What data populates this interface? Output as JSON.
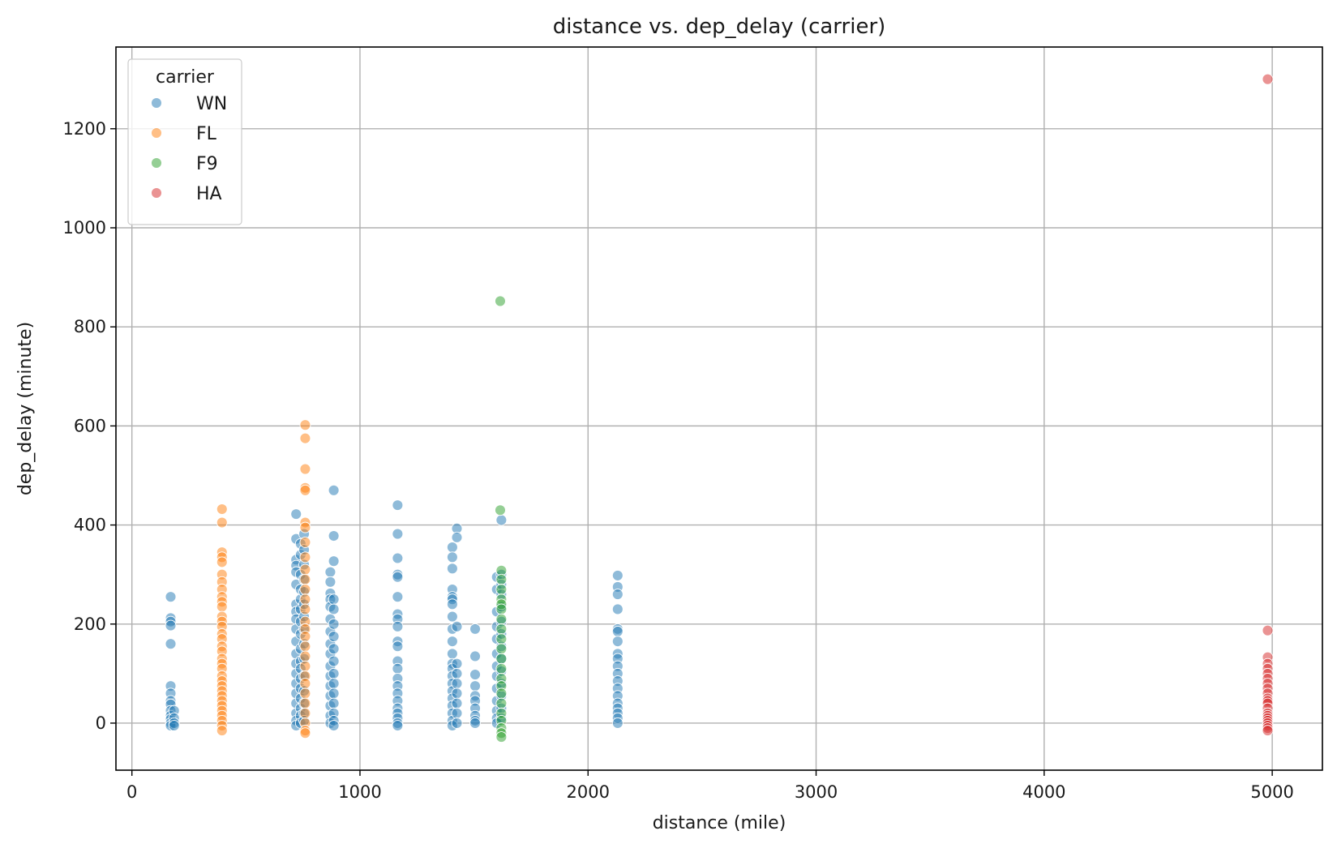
{
  "chart_data": {
    "type": "scatter",
    "title": "distance vs. dep_delay (carrier)",
    "xlabel": "distance (mile)",
    "ylabel": "dep_delay (minute)",
    "xlim": [
      -70,
      5220
    ],
    "ylim": [
      -95,
      1365
    ],
    "x_ticks": [
      0,
      1000,
      2000,
      3000,
      4000,
      5000
    ],
    "y_ticks": [
      0,
      200,
      400,
      600,
      800,
      1000,
      1200
    ],
    "grid": true,
    "legend": {
      "title": "carrier",
      "placement": "top-left"
    },
    "series": [
      {
        "name": "WN",
        "color": "#1f77b4",
        "points": [
          [
            170,
            255
          ],
          [
            170,
            212
          ],
          [
            170,
            205
          ],
          [
            170,
            197
          ],
          [
            170,
            160
          ],
          [
            170,
            75
          ],
          [
            170,
            60
          ],
          [
            170,
            45
          ],
          [
            170,
            38
          ],
          [
            170,
            25
          ],
          [
            170,
            15
          ],
          [
            170,
            8
          ],
          [
            170,
            0
          ],
          [
            170,
            -5
          ],
          [
            185,
            25
          ],
          [
            185,
            10
          ],
          [
            185,
            0
          ],
          [
            185,
            -5
          ],
          [
            720,
            422
          ],
          [
            720,
            372
          ],
          [
            720,
            330
          ],
          [
            720,
            318
          ],
          [
            720,
            305
          ],
          [
            720,
            280
          ],
          [
            720,
            240
          ],
          [
            720,
            225
          ],
          [
            720,
            210
          ],
          [
            720,
            190
          ],
          [
            720,
            165
          ],
          [
            720,
            140
          ],
          [
            720,
            120
          ],
          [
            720,
            100
          ],
          [
            720,
            80
          ],
          [
            720,
            60
          ],
          [
            720,
            40
          ],
          [
            720,
            20
          ],
          [
            720,
            5
          ],
          [
            720,
            -5
          ],
          [
            740,
            362
          ],
          [
            740,
            340
          ],
          [
            740,
            300
          ],
          [
            740,
            270
          ],
          [
            740,
            250
          ],
          [
            740,
            230
          ],
          [
            740,
            205
          ],
          [
            740,
            180
          ],
          [
            740,
            150
          ],
          [
            740,
            125
          ],
          [
            740,
            110
          ],
          [
            740,
            90
          ],
          [
            740,
            70
          ],
          [
            740,
            50
          ],
          [
            740,
            30
          ],
          [
            740,
            15
          ],
          [
            740,
            0
          ],
          [
            755,
            382
          ],
          [
            755,
            350
          ],
          [
            755,
            320
          ],
          [
            755,
            290
          ],
          [
            755,
            265
          ],
          [
            755,
            240
          ],
          [
            755,
            215
          ],
          [
            755,
            190
          ],
          [
            755,
            160
          ],
          [
            755,
            130
          ],
          [
            755,
            95
          ],
          [
            755,
            65
          ],
          [
            755,
            40
          ],
          [
            755,
            20
          ],
          [
            755,
            5
          ],
          [
            870,
            305
          ],
          [
            870,
            285
          ],
          [
            870,
            262
          ],
          [
            870,
            250
          ],
          [
            870,
            235
          ],
          [
            870,
            210
          ],
          [
            870,
            185
          ],
          [
            870,
            160
          ],
          [
            870,
            140
          ],
          [
            870,
            115
          ],
          [
            870,
            95
          ],
          [
            870,
            75
          ],
          [
            870,
            55
          ],
          [
            870,
            35
          ],
          [
            870,
            15
          ],
          [
            870,
            0
          ],
          [
            885,
            470
          ],
          [
            885,
            378
          ],
          [
            885,
            327
          ],
          [
            885,
            250
          ],
          [
            885,
            230
          ],
          [
            885,
            200
          ],
          [
            885,
            175
          ],
          [
            885,
            150
          ],
          [
            885,
            125
          ],
          [
            885,
            100
          ],
          [
            885,
            80
          ],
          [
            885,
            60
          ],
          [
            885,
            40
          ],
          [
            885,
            20
          ],
          [
            885,
            5
          ],
          [
            885,
            -5
          ],
          [
            1165,
            440
          ],
          [
            1165,
            382
          ],
          [
            1165,
            333
          ],
          [
            1165,
            300
          ],
          [
            1165,
            295
          ],
          [
            1165,
            255
          ],
          [
            1165,
            220
          ],
          [
            1165,
            210
          ],
          [
            1165,
            195
          ],
          [
            1165,
            165
          ],
          [
            1165,
            155
          ],
          [
            1165,
            125
          ],
          [
            1165,
            110
          ],
          [
            1165,
            90
          ],
          [
            1165,
            75
          ],
          [
            1165,
            60
          ],
          [
            1165,
            45
          ],
          [
            1165,
            30
          ],
          [
            1165,
            20
          ],
          [
            1165,
            10
          ],
          [
            1165,
            0
          ],
          [
            1165,
            -5
          ],
          [
            1405,
            355
          ],
          [
            1405,
            335
          ],
          [
            1405,
            312
          ],
          [
            1405,
            270
          ],
          [
            1405,
            255
          ],
          [
            1405,
            250
          ],
          [
            1405,
            240
          ],
          [
            1405,
            215
          ],
          [
            1405,
            190
          ],
          [
            1405,
            165
          ],
          [
            1405,
            140
          ],
          [
            1405,
            120
          ],
          [
            1405,
            110
          ],
          [
            1405,
            95
          ],
          [
            1405,
            80
          ],
          [
            1405,
            65
          ],
          [
            1405,
            50
          ],
          [
            1405,
            35
          ],
          [
            1405,
            20
          ],
          [
            1405,
            5
          ],
          [
            1405,
            -5
          ],
          [
            1425,
            393
          ],
          [
            1425,
            375
          ],
          [
            1425,
            195
          ],
          [
            1425,
            120
          ],
          [
            1425,
            100
          ],
          [
            1425,
            80
          ],
          [
            1425,
            60
          ],
          [
            1425,
            40
          ],
          [
            1425,
            20
          ],
          [
            1425,
            0
          ],
          [
            1505,
            190
          ],
          [
            1505,
            135
          ],
          [
            1505,
            98
          ],
          [
            1505,
            75
          ],
          [
            1505,
            55
          ],
          [
            1505,
            45
          ],
          [
            1505,
            30
          ],
          [
            1505,
            15
          ],
          [
            1505,
            5
          ],
          [
            1505,
            0
          ],
          [
            1600,
            295
          ],
          [
            1600,
            270
          ],
          [
            1600,
            225
          ],
          [
            1600,
            195
          ],
          [
            1600,
            170
          ],
          [
            1600,
            140
          ],
          [
            1600,
            115
          ],
          [
            1600,
            95
          ],
          [
            1600,
            70
          ],
          [
            1600,
            45
          ],
          [
            1600,
            25
          ],
          [
            1600,
            10
          ],
          [
            1600,
            0
          ],
          [
            1620,
            410
          ],
          [
            1620,
            300
          ],
          [
            1620,
            280
          ],
          [
            1620,
            260
          ],
          [
            1620,
            235
          ],
          [
            1620,
            205
          ],
          [
            1620,
            180
          ],
          [
            1620,
            155
          ],
          [
            1620,
            130
          ],
          [
            1620,
            105
          ],
          [
            1620,
            80
          ],
          [
            1620,
            55
          ],
          [
            1620,
            30
          ],
          [
            1620,
            10
          ],
          [
            2130,
            298
          ],
          [
            2130,
            275
          ],
          [
            2130,
            260
          ],
          [
            2130,
            230
          ],
          [
            2130,
            190
          ],
          [
            2130,
            185
          ],
          [
            2130,
            165
          ],
          [
            2130,
            140
          ],
          [
            2130,
            130
          ],
          [
            2130,
            115
          ],
          [
            2130,
            100
          ],
          [
            2130,
            85
          ],
          [
            2130,
            70
          ],
          [
            2130,
            55
          ],
          [
            2130,
            40
          ],
          [
            2130,
            30
          ],
          [
            2130,
            20
          ],
          [
            2130,
            10
          ],
          [
            2130,
            0
          ]
        ]
      },
      {
        "name": "FL",
        "color": "#ff7f0e",
        "points": [
          [
            395,
            432
          ],
          [
            395,
            405
          ],
          [
            395,
            345
          ],
          [
            395,
            335
          ],
          [
            395,
            325
          ],
          [
            395,
            300
          ],
          [
            395,
            285
          ],
          [
            395,
            270
          ],
          [
            395,
            255
          ],
          [
            395,
            245
          ],
          [
            395,
            235
          ],
          [
            395,
            215
          ],
          [
            395,
            205
          ],
          [
            395,
            195
          ],
          [
            395,
            180
          ],
          [
            395,
            170
          ],
          [
            395,
            155
          ],
          [
            395,
            145
          ],
          [
            395,
            130
          ],
          [
            395,
            120
          ],
          [
            395,
            110
          ],
          [
            395,
            95
          ],
          [
            395,
            85
          ],
          [
            395,
            75
          ],
          [
            395,
            65
          ],
          [
            395,
            55
          ],
          [
            395,
            45
          ],
          [
            395,
            35
          ],
          [
            395,
            25
          ],
          [
            395,
            15
          ],
          [
            395,
            5
          ],
          [
            395,
            -5
          ],
          [
            395,
            -15
          ],
          [
            760,
            602
          ],
          [
            760,
            575
          ],
          [
            760,
            513
          ],
          [
            760,
            475
          ],
          [
            760,
            470
          ],
          [
            760,
            405
          ],
          [
            760,
            395
          ],
          [
            760,
            365
          ],
          [
            760,
            335
          ],
          [
            760,
            310
          ],
          [
            760,
            290
          ],
          [
            760,
            270
          ],
          [
            760,
            250
          ],
          [
            760,
            230
          ],
          [
            760,
            205
          ],
          [
            760,
            190
          ],
          [
            760,
            175
          ],
          [
            760,
            155
          ],
          [
            760,
            135
          ],
          [
            760,
            115
          ],
          [
            760,
            95
          ],
          [
            760,
            80
          ],
          [
            760,
            60
          ],
          [
            760,
            40
          ],
          [
            760,
            20
          ],
          [
            760,
            0
          ],
          [
            760,
            -15
          ],
          [
            760,
            -20
          ]
        ]
      },
      {
        "name": "F9",
        "color": "#2ca02c",
        "points": [
          [
            1615,
            852
          ],
          [
            1615,
            430
          ],
          [
            1620,
            308
          ],
          [
            1620,
            290
          ],
          [
            1620,
            270
          ],
          [
            1620,
            250
          ],
          [
            1620,
            240
          ],
          [
            1620,
            230
          ],
          [
            1620,
            210
          ],
          [
            1620,
            190
          ],
          [
            1620,
            170
          ],
          [
            1620,
            150
          ],
          [
            1620,
            130
          ],
          [
            1620,
            110
          ],
          [
            1620,
            90
          ],
          [
            1620,
            75
          ],
          [
            1620,
            60
          ],
          [
            1620,
            40
          ],
          [
            1620,
            20
          ],
          [
            1620,
            5
          ],
          [
            1620,
            -10
          ],
          [
            1620,
            -20
          ],
          [
            1620,
            -28
          ]
        ]
      },
      {
        "name": "HA",
        "color": "#d62728",
        "points": [
          [
            4980,
            1300
          ],
          [
            4980,
            187
          ],
          [
            4980,
            133
          ],
          [
            4980,
            120
          ],
          [
            4980,
            110
          ],
          [
            4980,
            100
          ],
          [
            4980,
            90
          ],
          [
            4980,
            80
          ],
          [
            4980,
            70
          ],
          [
            4980,
            60
          ],
          [
            4980,
            50
          ],
          [
            4980,
            45
          ],
          [
            4980,
            40
          ],
          [
            4980,
            30
          ],
          [
            4980,
            20
          ],
          [
            4980,
            15
          ],
          [
            4980,
            10
          ],
          [
            4980,
            5
          ],
          [
            4980,
            0
          ],
          [
            4980,
            -5
          ],
          [
            4980,
            -10
          ],
          [
            4980,
            -15
          ]
        ]
      }
    ]
  }
}
